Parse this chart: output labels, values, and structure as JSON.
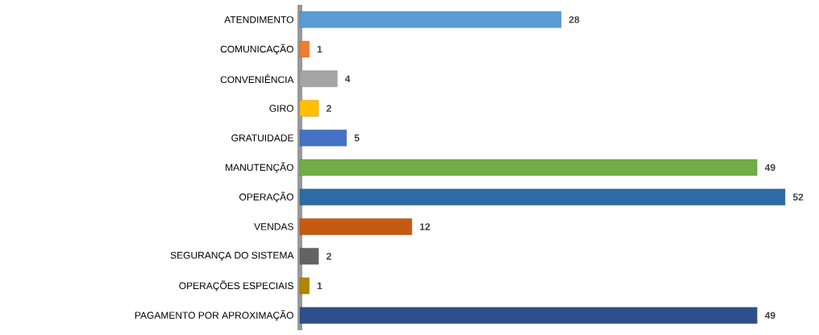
{
  "chart_data": {
    "type": "bar",
    "orientation": "horizontal",
    "categories": [
      "ATENDIMENTO",
      "COMUNICAÇÃO",
      "CONVENIÊNCIA",
      "GIRO",
      "GRATUIDADE",
      "MANUTENÇÃO",
      "OPERAÇÃO",
      "VENDAS",
      "SEGURANÇA DO SISTEMA",
      "OPERAÇÕES ESPECIAIS",
      "PAGAMENTO POR APROXIMAÇÃO"
    ],
    "values": [
      28,
      1,
      4,
      2,
      5,
      49,
      52,
      12,
      2,
      1,
      49
    ],
    "colors": [
      "#5b9bd5",
      "#ed7d31",
      "#a5a5a5",
      "#ffc000",
      "#4472c4",
      "#70ad47",
      "#2e6aa5",
      "#c55a11",
      "#636363",
      "#b08600",
      "#2f4f8a"
    ],
    "data_labels": true,
    "tick_labels": "y"
  }
}
